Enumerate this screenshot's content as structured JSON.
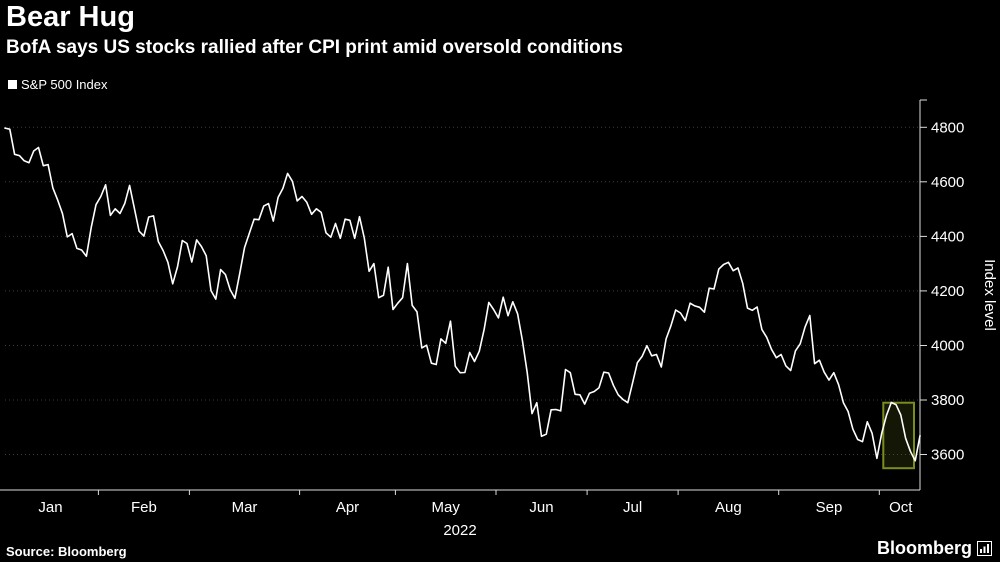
{
  "header": {
    "title": "Bear Hug",
    "subtitle": "BofA says US stocks rallied after CPI print amid oversold conditions"
  },
  "legend": {
    "label": "S&P 500 Index",
    "swatch_color": "#ffffff"
  },
  "footer": {
    "source": "Source: Bloomberg",
    "brand": "Bloomberg"
  },
  "chart_data": {
    "type": "line",
    "title": "Bear Hug",
    "xlabel": "2022",
    "ylabel": "Index level",
    "x_tick_labels": [
      "Jan",
      "Feb",
      "Mar",
      "Apr",
      "May",
      "Jun",
      "Jul",
      "Aug",
      "Sep",
      "Oct"
    ],
    "month_lengths": [
      20,
      19,
      23,
      20,
      21,
      19,
      19,
      21,
      21,
      9
    ],
    "y_ticks": [
      3600,
      3800,
      4000,
      4200,
      4400,
      4600,
      4800
    ],
    "ylim": [
      3470,
      4900
    ],
    "grid": true,
    "legend_position": "top-left",
    "line_color": "#ffffff",
    "background": "#000000",
    "grid_color": "#3c3c3c",
    "axis_color": "#dcdcdc",
    "series": [
      {
        "name": "S&P 500 Index",
        "values": [
          4797,
          4793,
          4701,
          4696,
          4677,
          4670,
          4713,
          4726,
          4659,
          4663,
          4577,
          4533,
          4483,
          4398,
          4410,
          4356,
          4350,
          4327,
          4432,
          4516,
          4546,
          4589,
          4477,
          4501,
          4484,
          4521,
          4587,
          4504,
          4419,
          4401,
          4471,
          4475,
          4381,
          4348,
          4305,
          4226,
          4288,
          4385,
          4374,
          4306,
          4387,
          4363,
          4329,
          4201,
          4170,
          4278,
          4260,
          4204,
          4173,
          4263,
          4358,
          4411,
          4463,
          4461,
          4511,
          4520,
          4456,
          4543,
          4576,
          4631,
          4602,
          4530,
          4546,
          4525,
          4481,
          4501,
          4488,
          4413,
          4397,
          4447,
          4393,
          4463,
          4459,
          4393,
          4472,
          4394,
          4272,
          4300,
          4175,
          4184,
          4287,
          4132,
          4155,
          4175,
          4300,
          4147,
          4123,
          3991,
          4001,
          3935,
          3930,
          4024,
          4008,
          4089,
          3924,
          3900,
          3901,
          3974,
          3941,
          3979,
          4058,
          4158,
          4132,
          4101,
          4177,
          4109,
          4160,
          4116,
          4018,
          3901,
          3750,
          3790,
          3667,
          3675,
          3764,
          3765,
          3760,
          3912,
          3900,
          3821,
          3819,
          3785,
          3825,
          3831,
          3845,
          3902,
          3899,
          3854,
          3819,
          3802,
          3790,
          3863,
          3937,
          3960,
          3999,
          3962,
          3967,
          3921,
          4024,
          4072,
          4130,
          4119,
          4091,
          4155,
          4145,
          4140,
          4122,
          4210,
          4207,
          4280,
          4297,
          4305,
          4274,
          4284,
          4228,
          4137,
          4129,
          4141,
          4058,
          4030,
          3986,
          3955,
          3967,
          3925,
          3908,
          3980,
          4006,
          4067,
          4110,
          3933,
          3946,
          3902,
          3873,
          3900,
          3856,
          3790,
          3758,
          3693,
          3655,
          3647,
          3720,
          3678,
          3586,
          3678,
          3744,
          3791,
          3783,
          3745,
          3660,
          3612,
          3577,
          3669
        ]
      }
    ],
    "highlight_box": {
      "start_index": 185,
      "end_index": 191,
      "value_min": 3550,
      "value_max": 3790,
      "stroke_color": "#7a8d1f",
      "fill_color": "rgba(122,141,31,0.16)"
    }
  }
}
